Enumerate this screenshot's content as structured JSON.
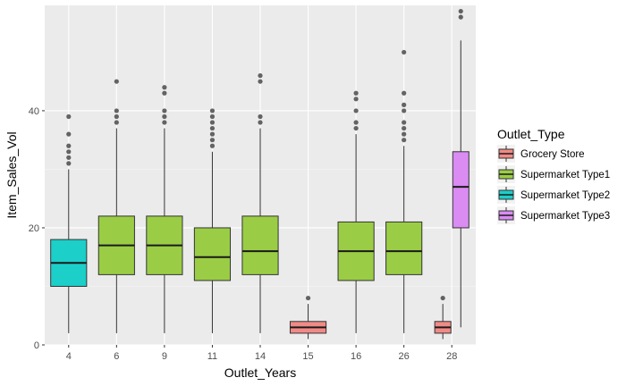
{
  "chart_data": {
    "type": "boxplot",
    "xlabel": "Outlet_Years",
    "ylabel": "Item_Sales_Vol",
    "ylim": [
      0,
      58
    ],
    "yticks": [
      0,
      20,
      40
    ],
    "grid": true,
    "legend": {
      "title": "Outlet_Type",
      "position": "right",
      "entries": [
        {
          "label": "Grocery Store",
          "color": "#f08a86"
        },
        {
          "label": "Supermarket Type1",
          "color": "#9acd45"
        },
        {
          "label": "Supermarket Type2",
          "color": "#1ccfc9"
        },
        {
          "label": "Supermarket Type3",
          "color": "#da8cf2"
        }
      ]
    },
    "categories": [
      "4",
      "6",
      "9",
      "11",
      "14",
      "15",
      "16",
      "26",
      "28"
    ],
    "boxes": [
      {
        "x": "4",
        "group": "Supermarket Type2",
        "min": 2,
        "q1": 10,
        "median": 14,
        "q3": 18,
        "max": 30,
        "outliers": [
          31,
          32,
          33,
          34,
          36,
          39
        ]
      },
      {
        "x": "6",
        "group": "Supermarket Type1",
        "min": 2,
        "q1": 12,
        "median": 17,
        "q3": 22,
        "max": 37,
        "outliers": [
          38,
          39,
          40,
          45
        ]
      },
      {
        "x": "9",
        "group": "Supermarket Type1",
        "min": 2,
        "q1": 12,
        "median": 17,
        "q3": 22,
        "max": 37,
        "outliers": [
          38,
          39,
          40,
          43,
          44
        ]
      },
      {
        "x": "11",
        "group": "Supermarket Type1",
        "min": 2,
        "q1": 11,
        "median": 15,
        "q3": 20,
        "max": 33,
        "outliers": [
          34,
          35,
          36,
          37,
          38,
          39,
          40
        ]
      },
      {
        "x": "14",
        "group": "Supermarket Type1",
        "min": 2,
        "q1": 12,
        "median": 16,
        "q3": 22,
        "max": 37,
        "outliers": [
          38,
          39,
          45,
          46
        ]
      },
      {
        "x": "15",
        "group": "Grocery Store",
        "min": 1,
        "q1": 2,
        "median": 3,
        "q3": 4,
        "max": 7,
        "outliers": [
          8
        ]
      },
      {
        "x": "16",
        "group": "Supermarket Type1",
        "min": 2,
        "q1": 11,
        "median": 16,
        "q3": 21,
        "max": 36,
        "outliers": [
          37,
          38,
          40,
          42,
          43
        ]
      },
      {
        "x": "26",
        "group": "Supermarket Type1",
        "min": 2,
        "q1": 12,
        "median": 16,
        "q3": 21,
        "max": 34,
        "outliers": [
          35,
          36,
          37,
          38,
          40,
          41,
          43,
          50
        ]
      },
      {
        "x": "28",
        "group": "Grocery Store",
        "min": 1,
        "q1": 2,
        "median": 3,
        "q3": 4,
        "max": 7,
        "outliers": [
          8
        ]
      },
      {
        "x": "28",
        "group": "Supermarket Type3",
        "min": 3,
        "q1": 20,
        "median": 27,
        "q3": 33,
        "max": 52,
        "outliers": [
          56,
          57
        ]
      }
    ]
  }
}
